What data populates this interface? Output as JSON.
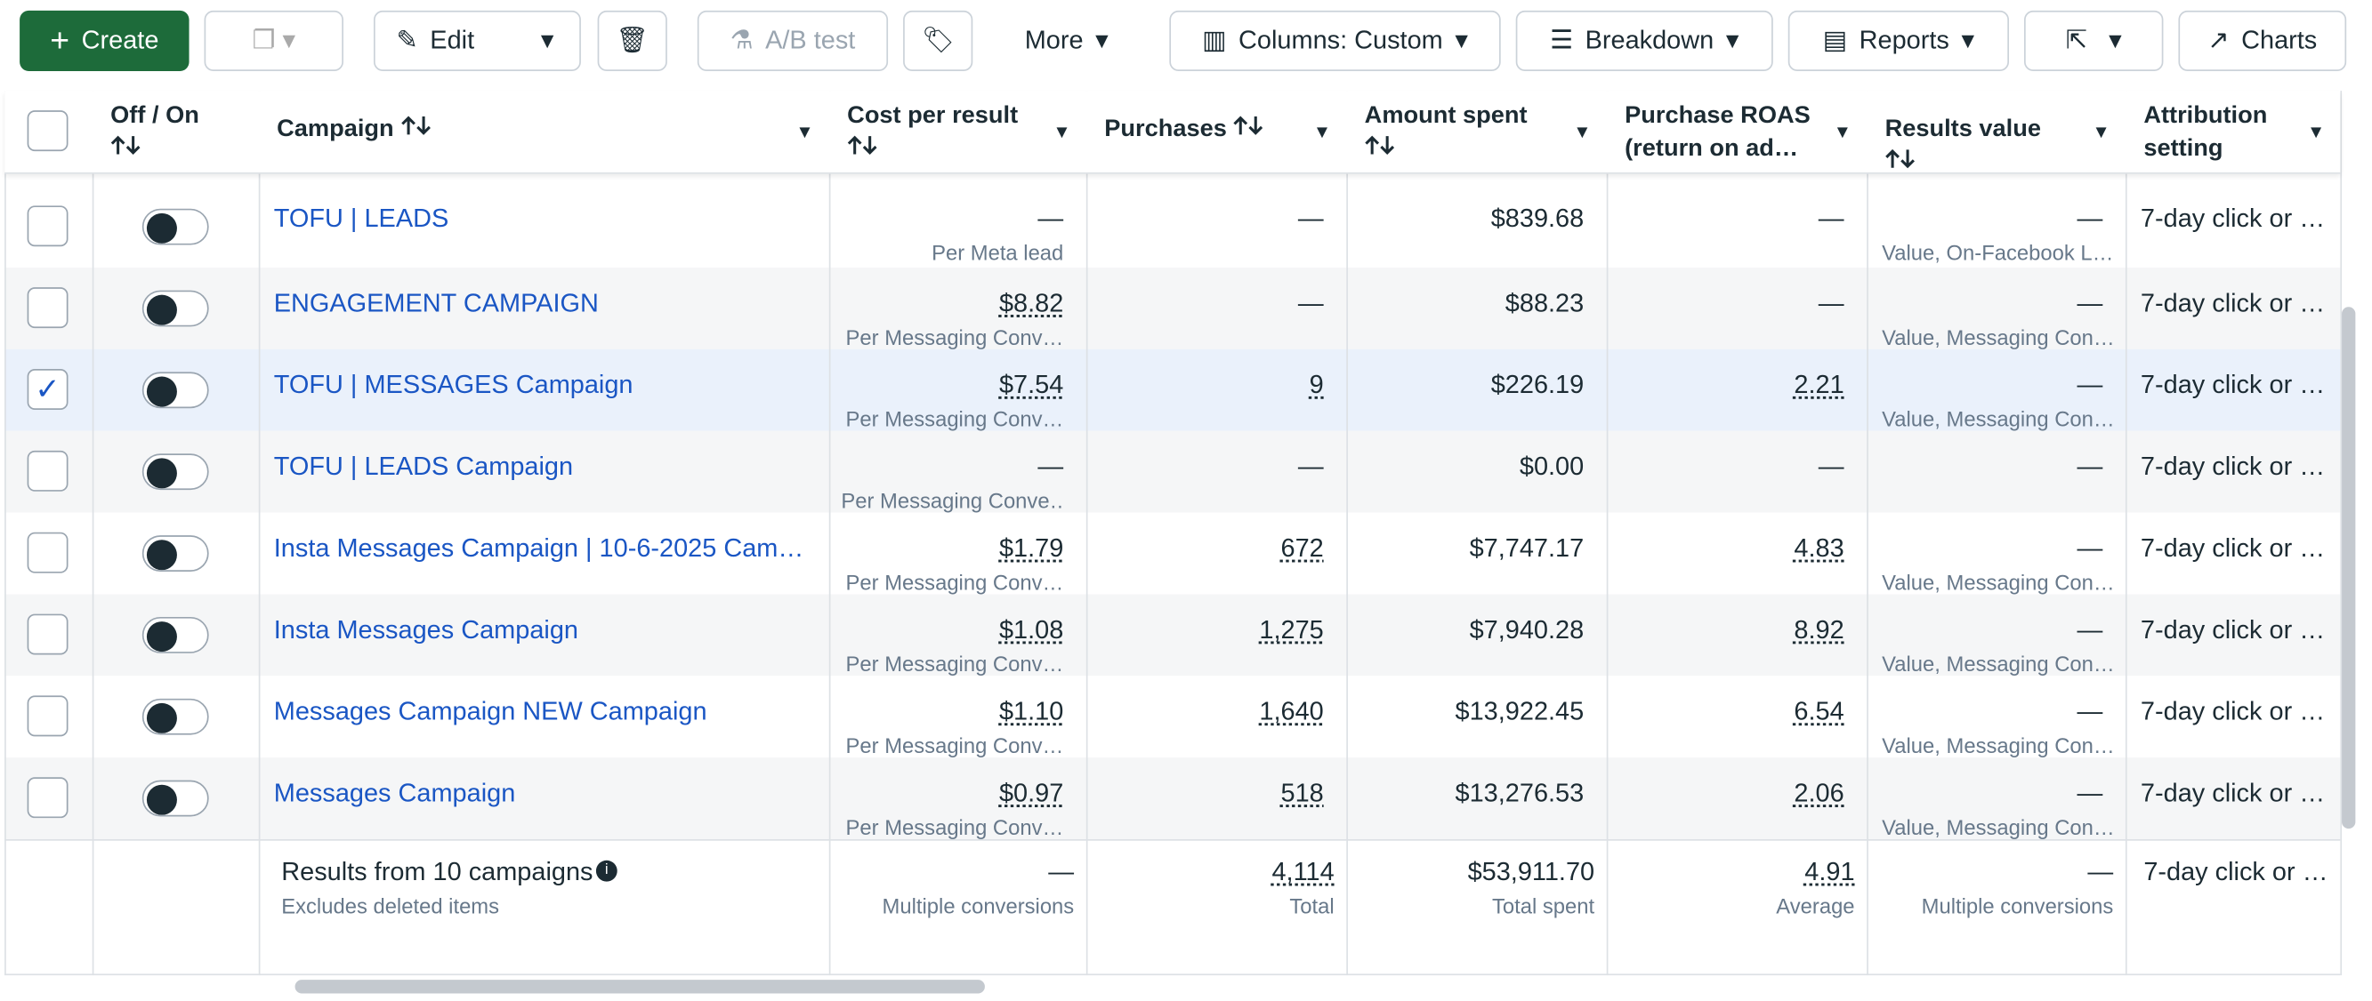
{
  "toolbar": {
    "create": "Create",
    "edit": "Edit",
    "ab_test": "A/B test",
    "more": "More",
    "columns": "Columns: Custom",
    "breakdown": "Breakdown",
    "reports": "Reports",
    "charts": "Charts"
  },
  "table": {
    "headers": [
      "Off / On",
      "Campaign",
      "Cost per result",
      "Purchases",
      "Amount spent",
      "Purchase ROAS (return on ad…",
      "Results value",
      "Attribution setting"
    ],
    "rows": [
      {
        "campaign": "TOFU | LEADS",
        "cost": "—",
        "cost_sub": "Per Meta lead",
        "purchases": "—",
        "amount": "$839.68",
        "roas": "—",
        "results_value": "—",
        "results_sub": "Value, On-Facebook L…",
        "attribution": "7-day click or …",
        "selected": false
      },
      {
        "campaign": "ENGAGEMENT CAMPAIGN",
        "cost": "$8.82",
        "cost_sub": "Per Messaging Conv…",
        "purchases": "—",
        "amount": "$88.23",
        "roas": "—",
        "results_value": "—",
        "results_sub": "Value, Messaging Con…",
        "attribution": "7-day click or …",
        "selected": false
      },
      {
        "campaign": "TOFU | MESSAGES Campaign",
        "cost": "$7.54",
        "cost_sub": "Per Messaging Conv…",
        "purchases": "9",
        "amount": "$226.19",
        "roas": "2.21",
        "results_value": "—",
        "results_sub": "Value, Messaging Con…",
        "attribution": "7-day click or …",
        "selected": true
      },
      {
        "campaign": "TOFU | LEADS Campaign",
        "cost": "—",
        "cost_sub": "Per Messaging Conve…",
        "purchases": "—",
        "amount": "$0.00",
        "roas": "—",
        "results_value": "—",
        "results_sub": "",
        "attribution": "7-day click or …",
        "selected": false
      },
      {
        "campaign": "Insta Messages Campaign | 10-6-2025 Camp…",
        "cost": "$1.79",
        "cost_sub": "Per Messaging Conv…",
        "purchases": "672",
        "amount": "$7,747.17",
        "roas": "4.83",
        "results_value": "—",
        "results_sub": "Value, Messaging Con…",
        "attribution": "7-day click or …",
        "selected": false
      },
      {
        "campaign": "Insta Messages Campaign",
        "cost": "$1.08",
        "cost_sub": "Per Messaging Conv…",
        "purchases": "1,275",
        "amount": "$7,940.28",
        "roas": "8.92",
        "results_value": "—",
        "results_sub": "Value, Messaging Con…",
        "attribution": "7-day click or …",
        "selected": false
      },
      {
        "campaign": "Messages Campaign NEW Campaign",
        "cost": "$1.10",
        "cost_sub": "Per Messaging Conv…",
        "purchases": "1,640",
        "amount": "$13,922.45",
        "roas": "6.54",
        "results_value": "—",
        "results_sub": "Value, Messaging Con…",
        "attribution": "7-day click or …",
        "selected": false
      },
      {
        "campaign": "Messages Campaign",
        "cost": "$0.97",
        "cost_sub": "Per Messaging Conv…",
        "purchases": "518",
        "amount": "$13,276.53",
        "roas": "2.06",
        "results_value": "—",
        "results_sub": "Value, Messaging Con…",
        "attribution": "7-day click or …",
        "selected": false
      }
    ],
    "footer": {
      "title": "Results from 10 campaigns",
      "note": "Excludes deleted items",
      "cost": "—",
      "cost_sub": "Multiple conversions",
      "purchases": "4,114",
      "purchases_sub": "Total",
      "amount": "$53,911.70",
      "amount_sub": "Total spent",
      "roas": "4.91",
      "roas_sub": "Average",
      "results_value": "—",
      "results_sub": "Multiple conversions",
      "attribution": "7-day click or …"
    }
  }
}
